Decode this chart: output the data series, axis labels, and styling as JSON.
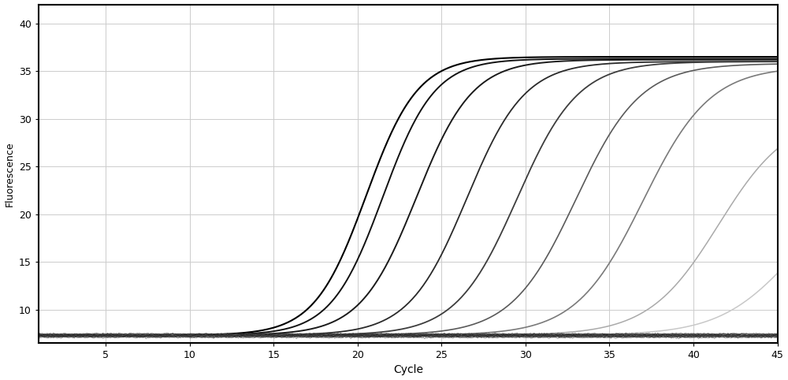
{
  "title": "",
  "xlabel": "Cycle",
  "ylabel": "Fluorescence",
  "xlim": [
    1,
    45
  ],
  "ylim": [
    6.5,
    42
  ],
  "xticks": [
    5,
    10,
    15,
    20,
    25,
    30,
    35,
    40,
    45
  ],
  "yticks": [
    10,
    15,
    20,
    25,
    30,
    35,
    40
  ],
  "background_color": "#ffffff",
  "grid_color": "#cccccc",
  "curves": [
    {
      "ct": 20.5,
      "ymin": 7.3,
      "ymax": 36.5,
      "color": "#000000",
      "lw": 1.5,
      "k": 0.65
    },
    {
      "ct": 21.5,
      "ymin": 7.3,
      "ymax": 36.3,
      "color": "#111111",
      "lw": 1.4,
      "k": 0.65
    },
    {
      "ct": 23.5,
      "ymin": 7.3,
      "ymax": 36.2,
      "color": "#1a1a1a",
      "lw": 1.4,
      "k": 0.6
    },
    {
      "ct": 26.5,
      "ymin": 7.3,
      "ymax": 36.0,
      "color": "#2a2a2a",
      "lw": 1.3,
      "k": 0.58
    },
    {
      "ct": 29.5,
      "ymin": 7.3,
      "ymax": 36.0,
      "color": "#3d3d3d",
      "lw": 1.3,
      "k": 0.55
    },
    {
      "ct": 33.0,
      "ymin": 7.3,
      "ymax": 35.8,
      "color": "#5a5a5a",
      "lw": 1.2,
      "k": 0.52
    },
    {
      "ct": 37.0,
      "ymin": 7.3,
      "ymax": 35.5,
      "color": "#7a7a7a",
      "lw": 1.2,
      "k": 0.5
    },
    {
      "ct": 41.5,
      "ymin": 7.3,
      "ymax": 30.5,
      "color": "#aaaaaa",
      "lw": 1.1,
      "k": 0.48
    },
    {
      "ct": 46.0,
      "ymin": 7.3,
      "ymax": 24.0,
      "color": "#c8c8c8",
      "lw": 1.1,
      "k": 0.45
    }
  ],
  "baseline_noise_seed": 42,
  "baseline_count": 20,
  "baseline_ybase": 7.2,
  "baseline_noise_std": 0.04,
  "baseline_color_range": [
    0.0,
    0.3
  ]
}
